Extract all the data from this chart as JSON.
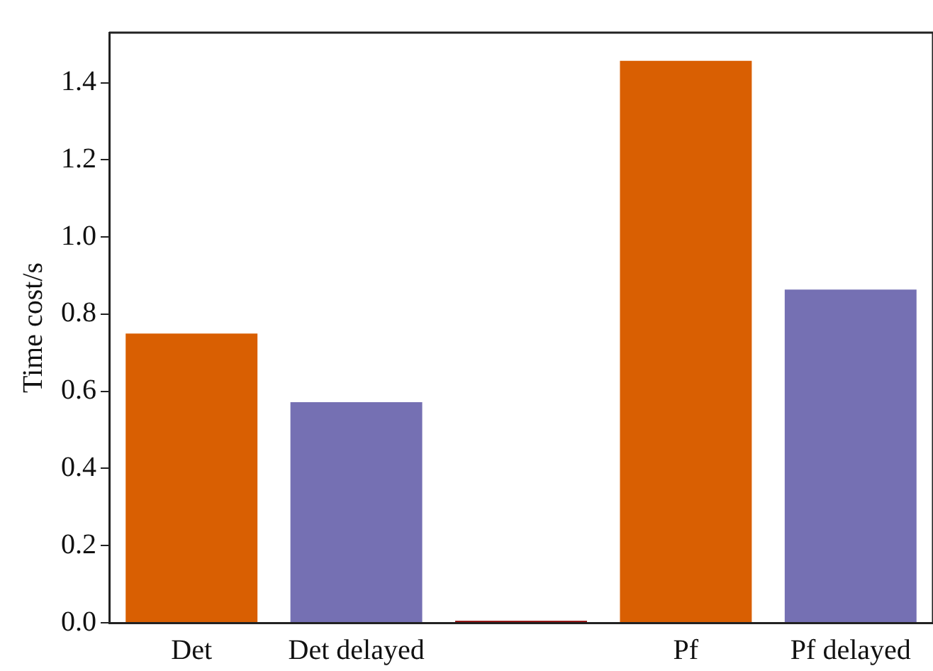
{
  "chart_data": {
    "type": "bar",
    "ylabel": "Time cost/s",
    "categories": [
      "Det",
      "Det delayed",
      null,
      "Pf",
      "Pf delayed"
    ],
    "values": [
      0.75,
      0.572,
      0.005,
      1.457,
      0.864
    ],
    "colors": [
      "#d95f02",
      "#7570b3",
      "#8b0000",
      "#d95f02",
      "#7570b3"
    ],
    "ylim": [
      0,
      1.53
    ],
    "yticks": [
      {
        "value": 0,
        "label": "0.0"
      },
      0.2,
      0.4,
      0.6,
      0.8,
      {
        "value": 1,
        "label": "1.0"
      },
      1.2,
      1.4
    ],
    "grid": false,
    "legend": false
  }
}
